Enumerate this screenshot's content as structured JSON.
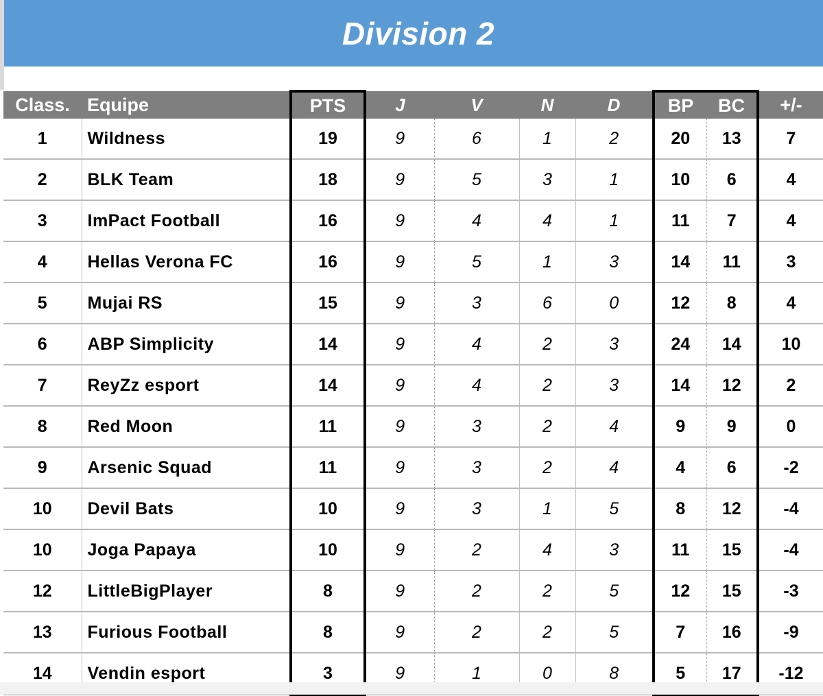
{
  "title": "Division 2",
  "headers": {
    "rank": "Class.",
    "team": "Equipe",
    "pts": "PTS",
    "j": "J",
    "v": "V",
    "n": "N",
    "d": "D",
    "bp": "BP",
    "bc": "BC",
    "diff": "+/-"
  },
  "colors": {
    "banner": "#5b9bd5",
    "header_bg": "#7f7f7f",
    "bp_text": "#70ad47",
    "bc_text": "#e02020"
  },
  "rows": [
    {
      "rank": "1",
      "team": "Wildness",
      "pts": "19",
      "j": "9",
      "v": "6",
      "n": "1",
      "d": "2",
      "bp": "20",
      "bc": "13",
      "diff": "7"
    },
    {
      "rank": "2",
      "team": "BLK Team",
      "pts": "18",
      "j": "9",
      "v": "5",
      "n": "3",
      "d": "1",
      "bp": "10",
      "bc": "6",
      "diff": "4"
    },
    {
      "rank": "3",
      "team": "ImPact Football",
      "pts": "16",
      "j": "9",
      "v": "4",
      "n": "4",
      "d": "1",
      "bp": "11",
      "bc": "7",
      "diff": "4"
    },
    {
      "rank": "4",
      "team": "Hellas Verona FC",
      "pts": "16",
      "j": "9",
      "v": "5",
      "n": "1",
      "d": "3",
      "bp": "14",
      "bc": "11",
      "diff": "3"
    },
    {
      "rank": "5",
      "team": "Mujai RS",
      "pts": "15",
      "j": "9",
      "v": "3",
      "n": "6",
      "d": "0",
      "bp": "12",
      "bc": "8",
      "diff": "4"
    },
    {
      "rank": "6",
      "team": "ABP Simplicity",
      "pts": "14",
      "j": "9",
      "v": "4",
      "n": "2",
      "d": "3",
      "bp": "24",
      "bc": "14",
      "diff": "10"
    },
    {
      "rank": "7",
      "team": "ReyZz esport",
      "pts": "14",
      "j": "9",
      "v": "4",
      "n": "2",
      "d": "3",
      "bp": "14",
      "bc": "12",
      "diff": "2"
    },
    {
      "rank": "8",
      "team": "Red Moon",
      "pts": "11",
      "j": "9",
      "v": "3",
      "n": "2",
      "d": "4",
      "bp": "9",
      "bc": "9",
      "diff": "0"
    },
    {
      "rank": "9",
      "team": "Arsenic Squad",
      "pts": "11",
      "j": "9",
      "v": "3",
      "n": "2",
      "d": "4",
      "bp": "4",
      "bc": "6",
      "diff": "-2"
    },
    {
      "rank": "10",
      "team": "Devil Bats",
      "pts": "10",
      "j": "9",
      "v": "3",
      "n": "1",
      "d": "5",
      "bp": "8",
      "bc": "12",
      "diff": "-4"
    },
    {
      "rank": "10",
      "team": "Joga Papaya",
      "pts": "10",
      "j": "9",
      "v": "2",
      "n": "4",
      "d": "3",
      "bp": "11",
      "bc": "15",
      "diff": "-4"
    },
    {
      "rank": "12",
      "team": "LittleBigPlayer",
      "pts": "8",
      "j": "9",
      "v": "2",
      "n": "2",
      "d": "5",
      "bp": "12",
      "bc": "15",
      "diff": "-3"
    },
    {
      "rank": "13",
      "team": "Furious Football",
      "pts": "8",
      "j": "9",
      "v": "2",
      "n": "2",
      "d": "5",
      "bp": "7",
      "bc": "16",
      "diff": "-9"
    },
    {
      "rank": "14",
      "team": "Vendin esport",
      "pts": "3",
      "j": "9",
      "v": "1",
      "n": "0",
      "d": "8",
      "bp": "5",
      "bc": "17",
      "diff": "-12"
    }
  ]
}
